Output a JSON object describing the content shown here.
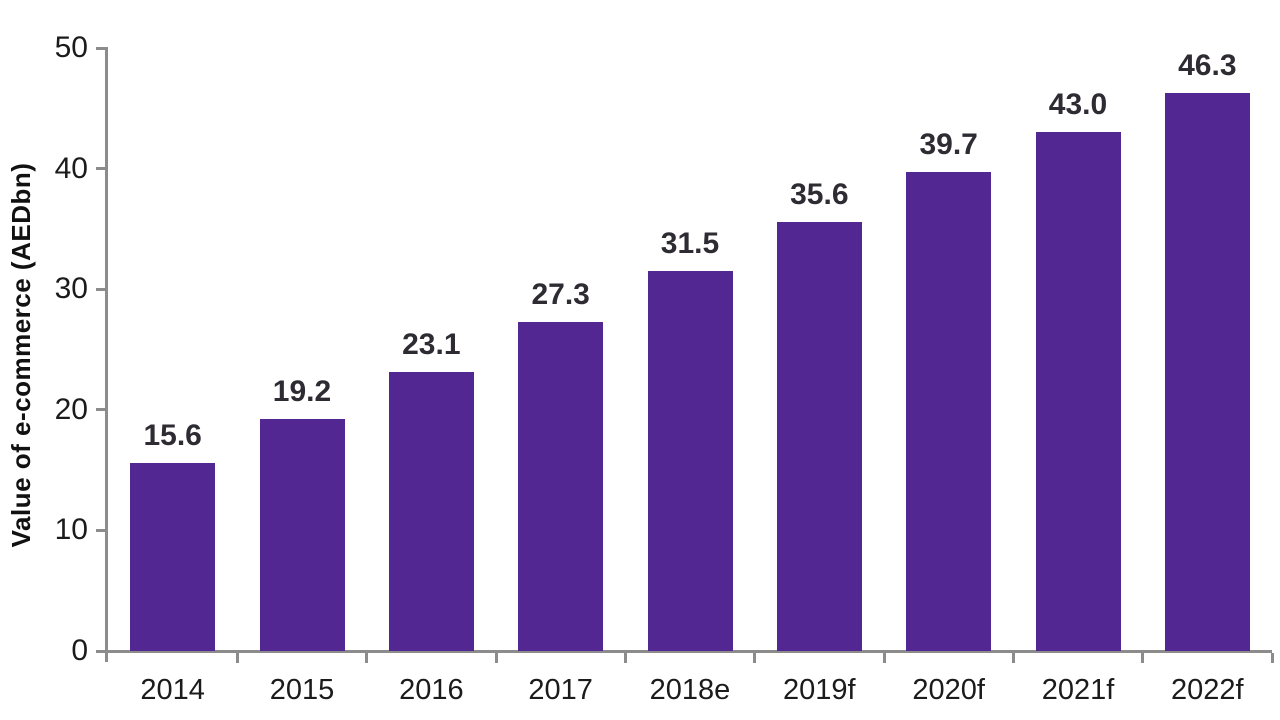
{
  "chart_data": {
    "type": "bar",
    "title": "",
    "xlabel": "",
    "ylabel": "Value of e-commerce (AEDbn)",
    "categories": [
      "2014",
      "2015",
      "2016",
      "2017",
      "2018e",
      "2019f",
      "2020f",
      "2021f",
      "2022f"
    ],
    "values": [
      15.6,
      19.2,
      23.1,
      27.3,
      31.5,
      35.6,
      39.7,
      43.0,
      46.3
    ],
    "value_labels": [
      "15.6",
      "19.2",
      "23.1",
      "27.3",
      "31.5",
      "35.6",
      "39.7",
      "43.0",
      "46.3"
    ],
    "ylim": [
      0,
      50
    ],
    "y_ticks": [
      0,
      10,
      20,
      30,
      40,
      50
    ],
    "grid": false,
    "legend": "none",
    "colors": {
      "bar": "#522791",
      "axis": "#8c8c8c",
      "value_label": "#2e2b33",
      "tick_label": "#1b1b1b",
      "axis_title": "#111111",
      "background": "#ffffff"
    }
  }
}
